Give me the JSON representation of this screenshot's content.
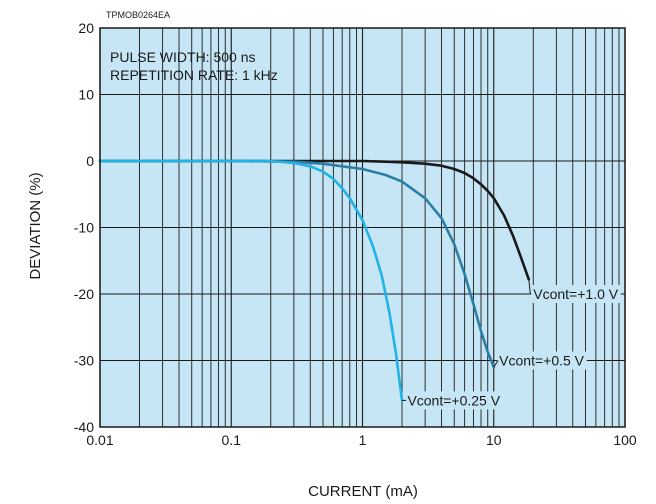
{
  "figure_code": "TPMOB0264EA",
  "chart_data": {
    "type": "line",
    "title": "",
    "xlabel": "CURRENT (mA)",
    "ylabel": "DEVIATION (%)",
    "xscale": "log",
    "xlim": [
      0.01,
      100
    ],
    "ylim": [
      -40,
      20
    ],
    "x_ticks": [
      "0.01",
      "0.1",
      "1",
      "10",
      "100"
    ],
    "y_ticks": [
      "20",
      "10",
      "0",
      "-10",
      "-20",
      "-30",
      "-40"
    ],
    "grid": true,
    "annotations": [
      "PULSE WIDTH: 500 ns",
      "REPETITION RATE: 1 kHz"
    ],
    "colors": {
      "plot_background": "#c6e6f6",
      "grid": "#1a1a1a",
      "vcont_1_0": "#1a1a1a",
      "vcont_0_5": "#2a7fa6",
      "vcont_0_25": "#1fb3e6"
    },
    "series": [
      {
        "name": "Vcont=+1.0 V",
        "color_key": "vcont_1_0",
        "x": [
          0.01,
          0.1,
          1,
          1.5,
          2,
          3,
          4,
          5,
          6,
          7,
          8,
          9,
          10,
          12,
          14,
          16,
          18.5
        ],
        "y": [
          0,
          0,
          0,
          -0.1,
          -0.2,
          -0.4,
          -0.7,
          -1.2,
          -1.8,
          -2.6,
          -3.5,
          -4.5,
          -5.6,
          -8.2,
          -11.2,
          -14.3,
          -17.8
        ]
      },
      {
        "name": "Vcont=+0.5 V",
        "color_key": "vcont_0_5",
        "x": [
          0.01,
          0.1,
          0.3,
          0.5,
          0.7,
          1,
          1.5,
          2,
          3,
          4,
          5,
          6,
          7,
          8,
          9,
          10
        ],
        "y": [
          0,
          0,
          -0.1,
          -0.4,
          -0.8,
          -1.2,
          -2.1,
          -3.1,
          -5.6,
          -8.6,
          -12.5,
          -17,
          -21.5,
          -25.6,
          -28.7,
          -31
        ]
      },
      {
        "name": "Vcont=+0.25 V",
        "color_key": "vcont_0_25",
        "x": [
          0.01,
          0.1,
          0.2,
          0.3,
          0.4,
          0.5,
          0.6,
          0.7,
          0.8,
          1,
          1.2,
          1.4,
          1.6,
          1.8,
          2
        ],
        "y": [
          0,
          0,
          0,
          -0.3,
          -0.8,
          -1.6,
          -2.7,
          -4.1,
          -5.6,
          -8.9,
          -12.8,
          -17.2,
          -22.7,
          -29,
          -36
        ]
      }
    ]
  }
}
